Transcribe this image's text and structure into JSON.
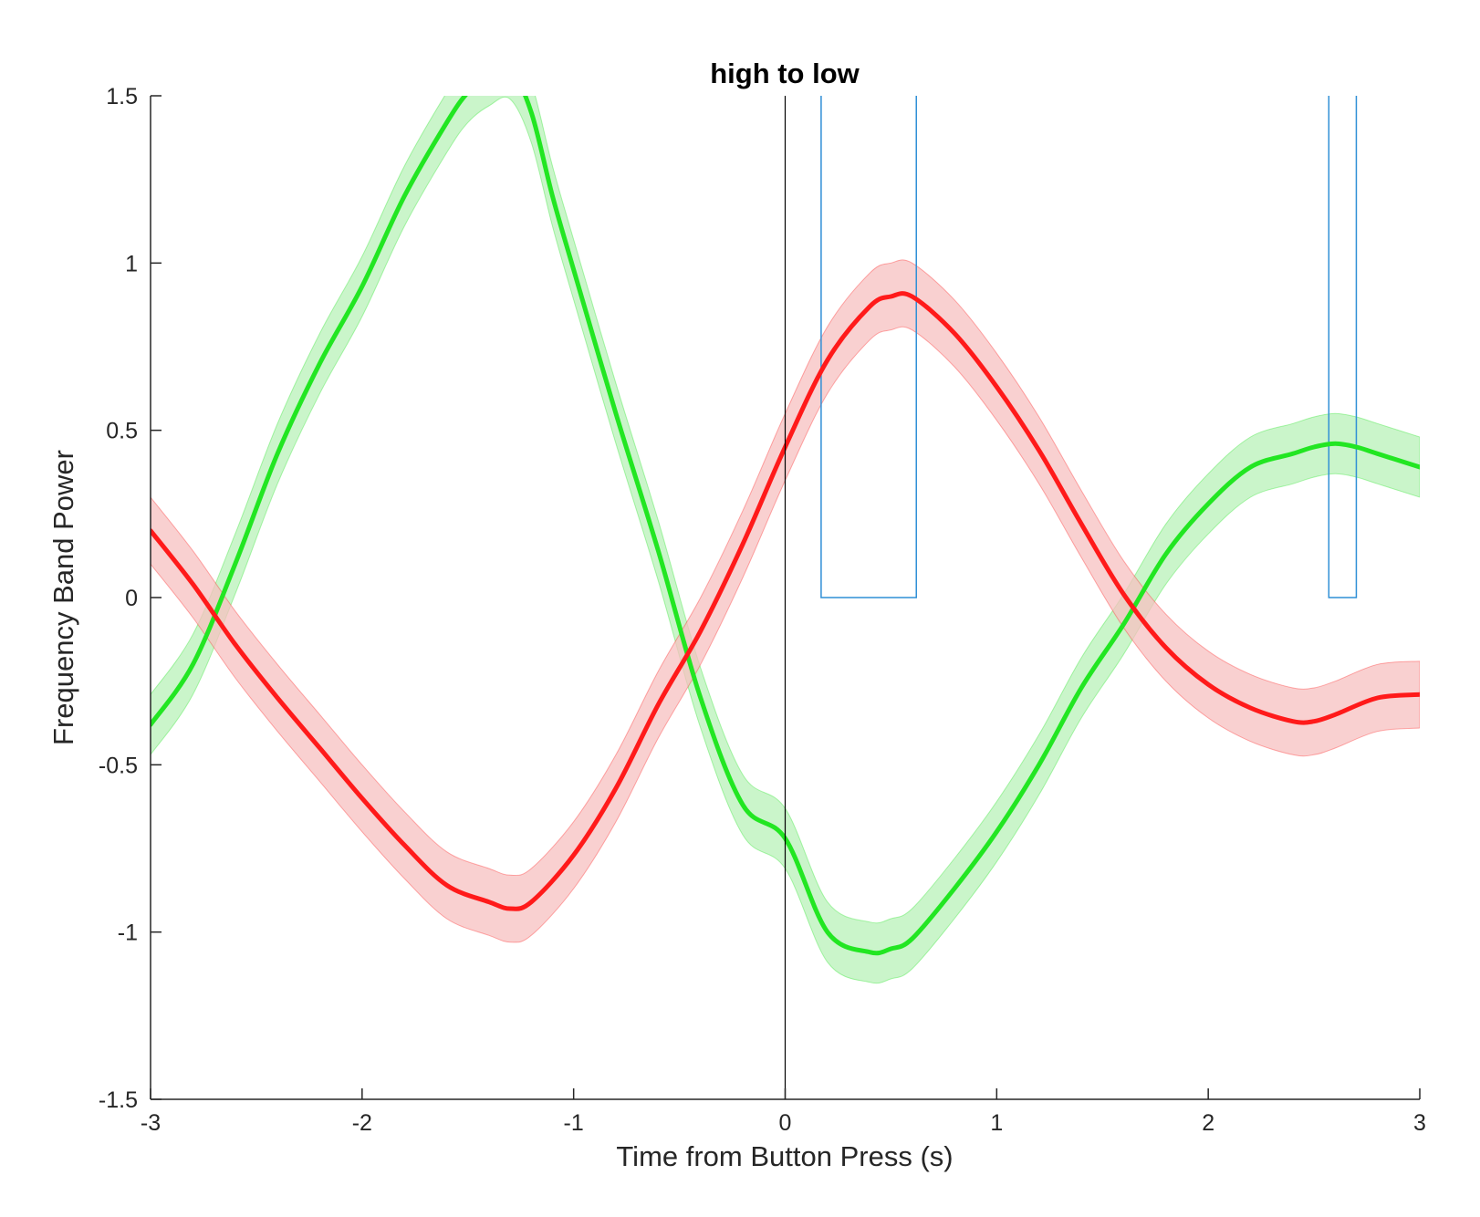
{
  "chart_data": {
    "type": "line",
    "title": "high to low",
    "xlabel": "Time from Button Press (s)",
    "ylabel": "Frequency Band Power",
    "xlim": [
      -3,
      3
    ],
    "ylim": [
      -1.5,
      1.5
    ],
    "xticks": [
      -3,
      -2,
      -1,
      0,
      1,
      2,
      3
    ],
    "xtick_labels": [
      "-3",
      "-2",
      "-1",
      "0",
      "1",
      "2",
      "3"
    ],
    "yticks": [
      -1.5,
      -1,
      -0.5,
      0,
      0.5,
      1,
      1.5
    ],
    "ytick_labels": [
      "-1.5",
      "-1",
      "-0.5",
      "0",
      "0.5",
      "1",
      "1.5"
    ],
    "grid": false,
    "vline_x": 0,
    "series": [
      {
        "color": "#22e622",
        "band_color": "#b8f2b8",
        "band_halfwidth": 0.09,
        "x": [
          -3,
          -2.8,
          -2.6,
          -2.4,
          -2.2,
          -2.0,
          -1.8,
          -1.6,
          -1.5,
          -1.4,
          -1.3,
          -1.2,
          -1.1,
          -1.0,
          -0.8,
          -0.6,
          -0.4,
          -0.2,
          0,
          0.2,
          0.4,
          0.5,
          0.6,
          0.8,
          1.0,
          1.2,
          1.4,
          1.6,
          1.8,
          2.0,
          2.2,
          2.4,
          2.5,
          2.6,
          2.7,
          2.8,
          3.0
        ],
        "y": [
          -0.38,
          -0.2,
          0.1,
          0.43,
          0.7,
          0.93,
          1.2,
          1.42,
          1.51,
          1.56,
          1.58,
          1.45,
          1.2,
          0.98,
          0.55,
          0.14,
          -0.3,
          -0.62,
          -0.72,
          -1.0,
          -1.06,
          -1.05,
          -1.02,
          -0.87,
          -0.7,
          -0.5,
          -0.27,
          -0.08,
          0.13,
          0.28,
          0.39,
          0.43,
          0.45,
          0.46,
          0.45,
          0.43,
          0.39
        ]
      },
      {
        "color": "#ff1a1a",
        "band_color": "#f7c0c0",
        "band_halfwidth": 0.1,
        "x": [
          -3,
          -2.8,
          -2.6,
          -2.4,
          -2.2,
          -2.0,
          -1.8,
          -1.6,
          -1.4,
          -1.3,
          -1.2,
          -1.0,
          -0.8,
          -0.6,
          -0.4,
          -0.2,
          0,
          0.2,
          0.4,
          0.5,
          0.6,
          0.8,
          1.0,
          1.2,
          1.4,
          1.6,
          1.8,
          2.0,
          2.2,
          2.4,
          2.5,
          2.6,
          2.8,
          3.0
        ],
        "y": [
          0.2,
          0.04,
          -0.14,
          -0.3,
          -0.45,
          -0.6,
          -0.74,
          -0.86,
          -0.91,
          -0.93,
          -0.91,
          -0.77,
          -0.57,
          -0.32,
          -0.1,
          0.16,
          0.45,
          0.71,
          0.87,
          0.9,
          0.9,
          0.79,
          0.63,
          0.44,
          0.22,
          0.01,
          -0.15,
          -0.26,
          -0.33,
          -0.37,
          -0.37,
          -0.35,
          -0.3,
          -0.29
        ]
      }
    ],
    "significance_boxes": [
      {
        "x0": 0.17,
        "x1": 0.62,
        "y0": 0,
        "y1": 1.5,
        "color": "#2f8fd6"
      },
      {
        "x0": 2.57,
        "x1": 2.7,
        "y0": 0,
        "y1": 1.5,
        "color": "#2f8fd6"
      }
    ]
  }
}
